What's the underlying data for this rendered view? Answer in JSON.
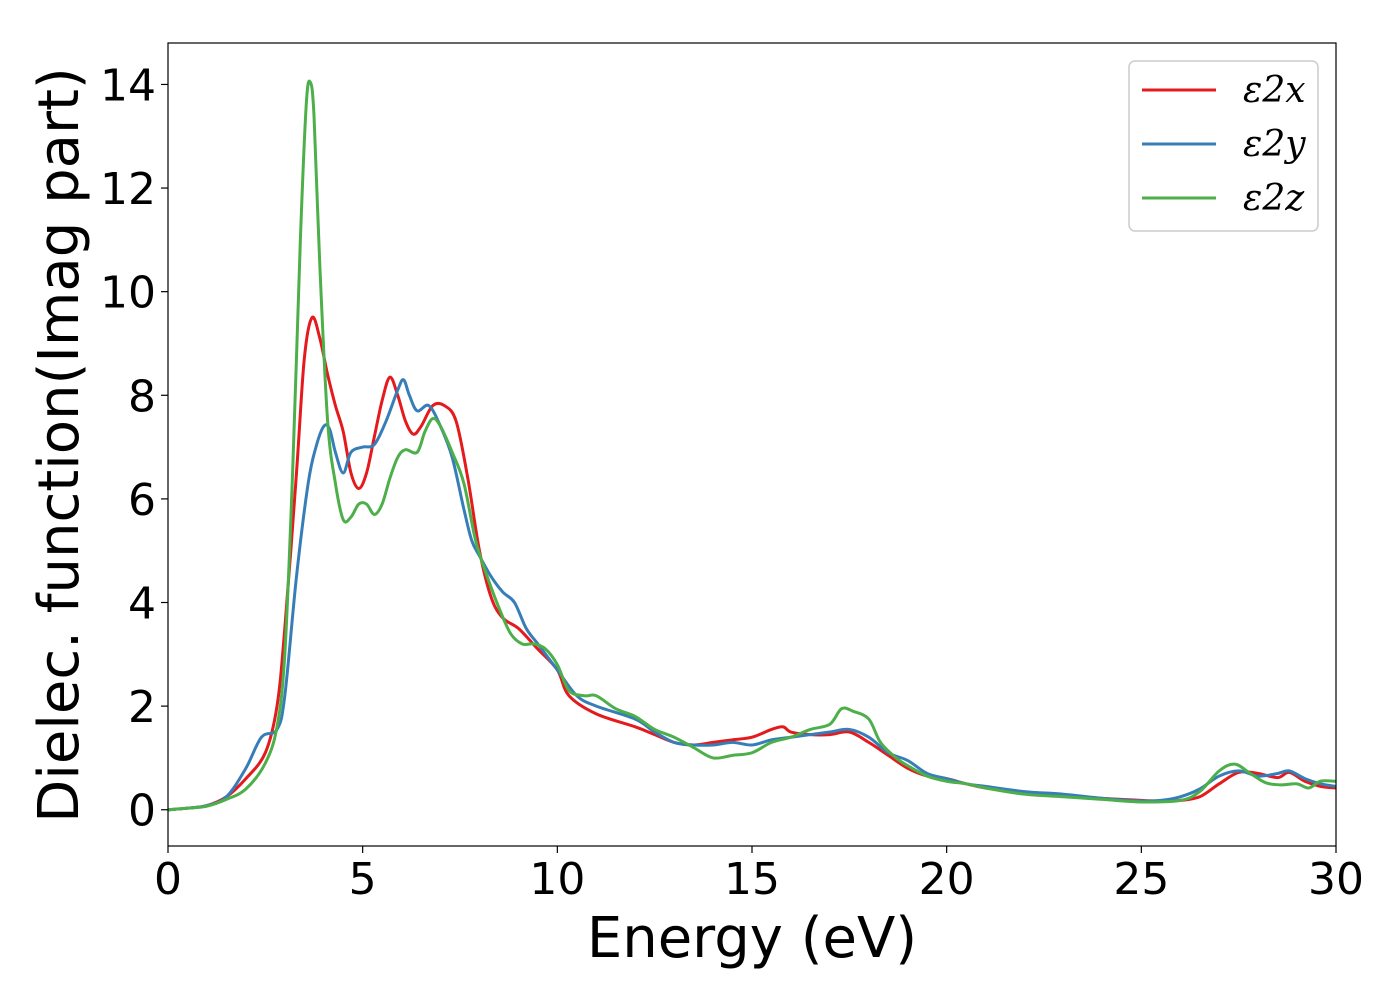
{
  "chart_data": {
    "type": "line",
    "title": "",
    "xlabel": "Energy (eV)",
    "ylabel": "Dielec. function(Imag part)",
    "xlim": [
      0,
      30
    ],
    "ylim": [
      -0.7,
      14.8
    ],
    "xticks": [
      0,
      5,
      10,
      15,
      20,
      25,
      30
    ],
    "yticks": [
      0,
      2,
      4,
      6,
      8,
      10,
      12,
      14
    ],
    "grid": false,
    "legend_position": "top-right",
    "series": [
      {
        "name": "ε2x",
        "color": "#e41a1c",
        "points": [
          [
            0,
            0.0
          ],
          [
            0.5,
            0.03
          ],
          [
            1.0,
            0.08
          ],
          [
            1.5,
            0.25
          ],
          [
            2.0,
            0.6
          ],
          [
            2.5,
            1.1
          ],
          [
            2.8,
            2.0
          ],
          [
            3.0,
            3.5
          ],
          [
            3.3,
            6.5
          ],
          [
            3.5,
            8.7
          ],
          [
            3.7,
            9.5
          ],
          [
            3.9,
            9.1
          ],
          [
            4.1,
            8.4
          ],
          [
            4.3,
            7.8
          ],
          [
            4.5,
            7.3
          ],
          [
            4.7,
            6.5
          ],
          [
            4.9,
            6.2
          ],
          [
            5.1,
            6.5
          ],
          [
            5.3,
            7.2
          ],
          [
            5.5,
            7.9
          ],
          [
            5.7,
            8.35
          ],
          [
            5.9,
            8.0
          ],
          [
            6.1,
            7.5
          ],
          [
            6.3,
            7.25
          ],
          [
            6.5,
            7.4
          ],
          [
            6.8,
            7.8
          ],
          [
            7.1,
            7.8
          ],
          [
            7.4,
            7.5
          ],
          [
            7.7,
            6.4
          ],
          [
            8.0,
            5.0
          ],
          [
            8.3,
            4.1
          ],
          [
            8.6,
            3.7
          ],
          [
            9.0,
            3.5
          ],
          [
            9.5,
            3.1
          ],
          [
            10.0,
            2.7
          ],
          [
            10.3,
            2.2
          ],
          [
            11.0,
            1.85
          ],
          [
            12.0,
            1.6
          ],
          [
            12.5,
            1.45
          ],
          [
            13.0,
            1.3
          ],
          [
            13.5,
            1.25
          ],
          [
            14.0,
            1.3
          ],
          [
            14.5,
            1.35
          ],
          [
            15.0,
            1.4
          ],
          [
            15.5,
            1.55
          ],
          [
            15.8,
            1.6
          ],
          [
            16.0,
            1.5
          ],
          [
            16.5,
            1.45
          ],
          [
            17.0,
            1.45
          ],
          [
            17.5,
            1.5
          ],
          [
            18.0,
            1.3
          ],
          [
            18.5,
            1.05
          ],
          [
            19.0,
            0.8
          ],
          [
            19.5,
            0.65
          ],
          [
            20.0,
            0.6
          ],
          [
            20.5,
            0.5
          ],
          [
            21.0,
            0.42
          ],
          [
            22.0,
            0.33
          ],
          [
            23.0,
            0.27
          ],
          [
            24.0,
            0.22
          ],
          [
            25.0,
            0.18
          ],
          [
            25.5,
            0.17
          ],
          [
            26.0,
            0.18
          ],
          [
            26.5,
            0.25
          ],
          [
            27.0,
            0.5
          ],
          [
            27.5,
            0.72
          ],
          [
            28.0,
            0.7
          ],
          [
            28.5,
            0.62
          ],
          [
            28.8,
            0.72
          ],
          [
            29.2,
            0.55
          ],
          [
            29.6,
            0.45
          ],
          [
            30.0,
            0.42
          ]
        ]
      },
      {
        "name": "ε2y",
        "color": "#377eb8",
        "points": [
          [
            0,
            0.0
          ],
          [
            0.5,
            0.03
          ],
          [
            1.0,
            0.08
          ],
          [
            1.5,
            0.25
          ],
          [
            2.0,
            0.8
          ],
          [
            2.4,
            1.4
          ],
          [
            2.8,
            1.55
          ],
          [
            3.0,
            2.2
          ],
          [
            3.3,
            4.5
          ],
          [
            3.6,
            6.3
          ],
          [
            3.8,
            7.0
          ],
          [
            4.0,
            7.4
          ],
          [
            4.15,
            7.35
          ],
          [
            4.3,
            6.9
          ],
          [
            4.5,
            6.5
          ],
          [
            4.7,
            6.9
          ],
          [
            5.0,
            7.0
          ],
          [
            5.3,
            7.05
          ],
          [
            5.6,
            7.5
          ],
          [
            5.9,
            8.1
          ],
          [
            6.05,
            8.3
          ],
          [
            6.2,
            8.0
          ],
          [
            6.4,
            7.7
          ],
          [
            6.7,
            7.8
          ],
          [
            7.0,
            7.4
          ],
          [
            7.3,
            6.8
          ],
          [
            7.6,
            5.8
          ],
          [
            7.8,
            5.2
          ],
          [
            8.0,
            4.9
          ],
          [
            8.3,
            4.5
          ],
          [
            8.6,
            4.2
          ],
          [
            8.9,
            4.0
          ],
          [
            9.2,
            3.5
          ],
          [
            9.5,
            3.2
          ],
          [
            10.0,
            2.7
          ],
          [
            10.5,
            2.2
          ],
          [
            11.0,
            2.0
          ],
          [
            12.0,
            1.75
          ],
          [
            12.5,
            1.5
          ],
          [
            13.0,
            1.3
          ],
          [
            13.5,
            1.25
          ],
          [
            14.0,
            1.25
          ],
          [
            14.5,
            1.3
          ],
          [
            15.0,
            1.25
          ],
          [
            15.5,
            1.35
          ],
          [
            16.0,
            1.4
          ],
          [
            16.5,
            1.45
          ],
          [
            17.0,
            1.5
          ],
          [
            17.5,
            1.55
          ],
          [
            18.0,
            1.4
          ],
          [
            18.5,
            1.1
          ],
          [
            19.0,
            0.95
          ],
          [
            19.5,
            0.7
          ],
          [
            20.0,
            0.6
          ],
          [
            20.5,
            0.5
          ],
          [
            21.0,
            0.45
          ],
          [
            22.0,
            0.35
          ],
          [
            23.0,
            0.3
          ],
          [
            24.0,
            0.22
          ],
          [
            25.0,
            0.17
          ],
          [
            25.5,
            0.18
          ],
          [
            26.0,
            0.25
          ],
          [
            26.5,
            0.4
          ],
          [
            27.0,
            0.65
          ],
          [
            27.5,
            0.75
          ],
          [
            28.0,
            0.65
          ],
          [
            28.5,
            0.7
          ],
          [
            28.8,
            0.75
          ],
          [
            29.2,
            0.6
          ],
          [
            29.6,
            0.5
          ],
          [
            30.0,
            0.45
          ]
        ]
      },
      {
        "name": "ε2z",
        "color": "#4daf4a",
        "points": [
          [
            0,
            0.0
          ],
          [
            0.5,
            0.03
          ],
          [
            1.0,
            0.07
          ],
          [
            1.5,
            0.2
          ],
          [
            2.0,
            0.4
          ],
          [
            2.5,
            0.9
          ],
          [
            2.8,
            1.6
          ],
          [
            3.0,
            3.0
          ],
          [
            3.2,
            6.5
          ],
          [
            3.4,
            11.0
          ],
          [
            3.55,
            13.6
          ],
          [
            3.65,
            14.05
          ],
          [
            3.75,
            13.4
          ],
          [
            3.9,
            10.5
          ],
          [
            4.1,
            7.5
          ],
          [
            4.3,
            6.3
          ],
          [
            4.5,
            5.6
          ],
          [
            4.7,
            5.65
          ],
          [
            4.9,
            5.9
          ],
          [
            5.1,
            5.9
          ],
          [
            5.3,
            5.7
          ],
          [
            5.5,
            5.9
          ],
          [
            5.7,
            6.4
          ],
          [
            5.9,
            6.8
          ],
          [
            6.1,
            6.95
          ],
          [
            6.4,
            6.9
          ],
          [
            6.6,
            7.3
          ],
          [
            6.8,
            7.55
          ],
          [
            7.0,
            7.4
          ],
          [
            7.3,
            6.9
          ],
          [
            7.6,
            6.3
          ],
          [
            7.9,
            5.2
          ],
          [
            8.2,
            4.5
          ],
          [
            8.5,
            3.9
          ],
          [
            8.8,
            3.4
          ],
          [
            9.1,
            3.2
          ],
          [
            9.4,
            3.2
          ],
          [
            9.7,
            3.1
          ],
          [
            10.0,
            2.8
          ],
          [
            10.3,
            2.3
          ],
          [
            10.7,
            2.2
          ],
          [
            11.0,
            2.2
          ],
          [
            11.5,
            1.95
          ],
          [
            12.0,
            1.8
          ],
          [
            12.5,
            1.55
          ],
          [
            13.0,
            1.4
          ],
          [
            13.5,
            1.2
          ],
          [
            14.0,
            1.0
          ],
          [
            14.5,
            1.05
          ],
          [
            15.0,
            1.1
          ],
          [
            15.5,
            1.3
          ],
          [
            16.0,
            1.4
          ],
          [
            16.5,
            1.55
          ],
          [
            17.0,
            1.65
          ],
          [
            17.3,
            1.95
          ],
          [
            17.6,
            1.9
          ],
          [
            18.0,
            1.75
          ],
          [
            18.3,
            1.3
          ],
          [
            18.7,
            1.0
          ],
          [
            19.0,
            0.85
          ],
          [
            19.5,
            0.65
          ],
          [
            20.0,
            0.55
          ],
          [
            20.5,
            0.5
          ],
          [
            21.0,
            0.42
          ],
          [
            22.0,
            0.3
          ],
          [
            23.0,
            0.25
          ],
          [
            24.0,
            0.2
          ],
          [
            25.0,
            0.15
          ],
          [
            26.0,
            0.18
          ],
          [
            26.5,
            0.35
          ],
          [
            27.0,
            0.75
          ],
          [
            27.4,
            0.88
          ],
          [
            27.8,
            0.7
          ],
          [
            28.2,
            0.52
          ],
          [
            28.6,
            0.48
          ],
          [
            29.0,
            0.5
          ],
          [
            29.3,
            0.42
          ],
          [
            29.6,
            0.55
          ],
          [
            30.0,
            0.55
          ]
        ]
      }
    ]
  }
}
